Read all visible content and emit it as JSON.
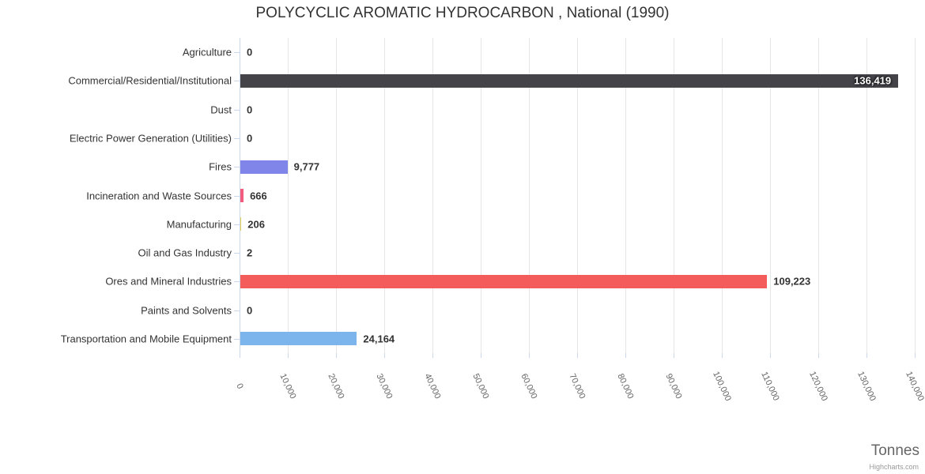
{
  "chart_data": {
    "type": "bar",
    "orientation": "horizontal",
    "title": "POLYCYCLIC AROMATIC HYDROCARBON , National (1990)",
    "xlabel": "Tonnes",
    "credit_label": "Highcharts.com",
    "categories": [
      "Agriculture",
      "Commercial/Residential/Institutional",
      "Dust",
      "Electric Power Generation (Utilities)",
      "Fires",
      "Incineration and Waste Sources",
      "Manufacturing",
      "Oil and Gas Industry",
      "Ores and Mineral Industries",
      "Paints and Solvents",
      "Transportation and Mobile Equipment"
    ],
    "values": [
      0,
      136419,
      0,
      0,
      9777,
      666,
      206,
      2,
      109223,
      0,
      24164
    ],
    "value_labels": [
      "0",
      "136,419",
      "0",
      "0",
      "9,777",
      "666",
      "206",
      "2",
      "109,223",
      "0",
      "24,164"
    ],
    "point_colors": [
      "#7cb5ec",
      "#434348",
      "#90ed7d",
      "#f7a35c",
      "#8085e9",
      "#f15c80",
      "#e4d354",
      "#2b908f",
      "#f45b5b",
      "#91e8e1",
      "#7cb5ec"
    ],
    "axis_range": [
      0,
      140000
    ],
    "tick_interval": 10000,
    "tick_labels": [
      "0",
      "10,000",
      "20,000",
      "30,000",
      "40,000",
      "50,000",
      "60,000",
      "70,000",
      "80,000",
      "90,000",
      "100,000",
      "110,000",
      "120,000",
      "130,000",
      "140,000"
    ],
    "grid": true,
    "legend": false,
    "colors": {
      "grid_line": "#e6e6e6",
      "axis_line": "#ccd6eb",
      "title_text": "#333333",
      "category_label_text": "#333333",
      "tick_label_text": "#666666",
      "axis_title_text": "#666666",
      "credit_text": "#999999",
      "data_label_text": "#333333",
      "data_label_inside_text": "#ffffff"
    }
  }
}
